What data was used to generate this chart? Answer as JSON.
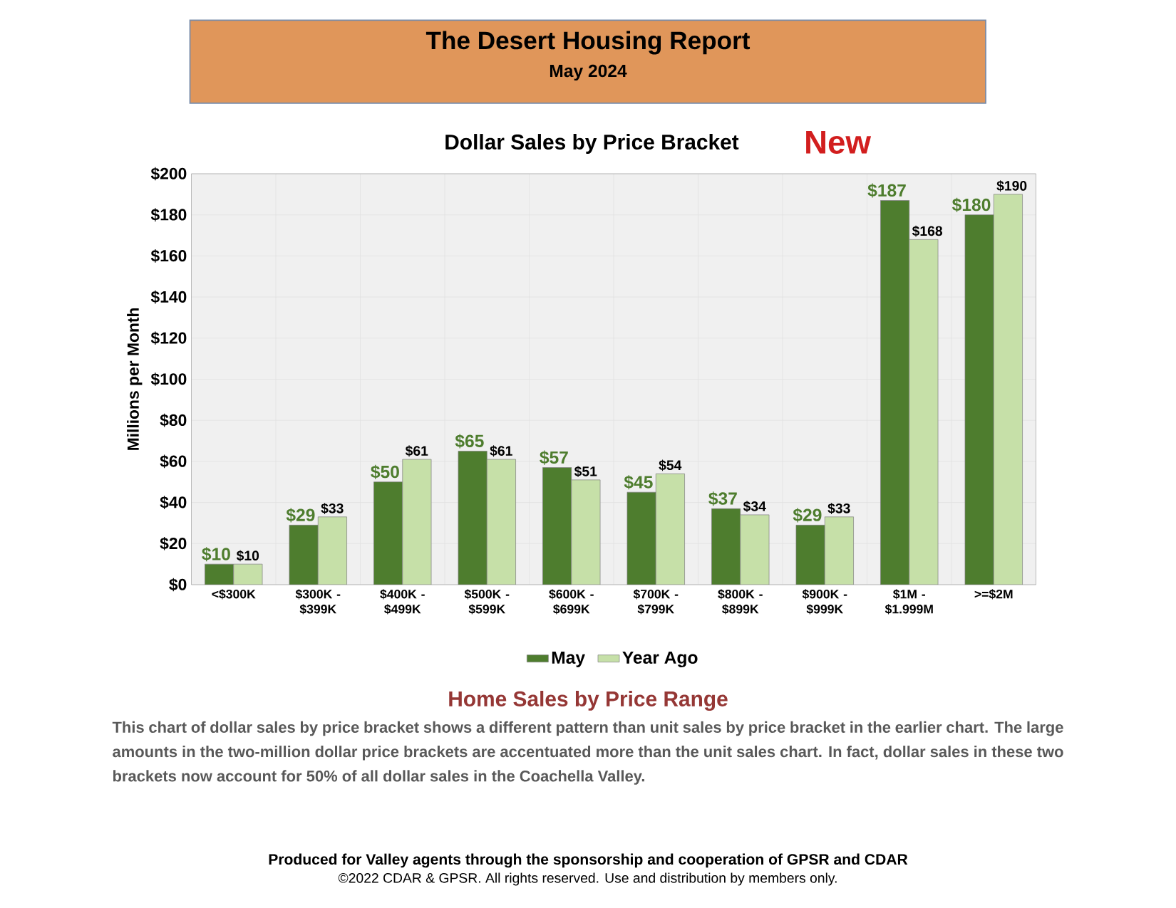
{
  "chart_data": {
    "type": "bar",
    "title": "Dollar Sales by Price Bracket",
    "ylabel": "Millions per Month",
    "categories": [
      "<$300K",
      "$300K - $399K",
      "$400K - $499K",
      "$500K - $599K",
      "$600K - $699K",
      "$700K - $799K",
      "$800K - $899K",
      "$900K - $999K",
      "$1M - $1.999M",
      ">=$2M"
    ],
    "series": [
      {
        "name": "May",
        "color": "#4e7d2e",
        "values": [
          10,
          29,
          50,
          65,
          57,
          45,
          37,
          29,
          187,
          180
        ],
        "value_labels": [
          "$10",
          "$29",
          "$50",
          "$65",
          "$57",
          "$45",
          "$37",
          "$29",
          "$187",
          "$180"
        ]
      },
      {
        "name": "Year Ago",
        "color": "#c6e0a8",
        "values": [
          10,
          33,
          61,
          61,
          51,
          54,
          34,
          33,
          168,
          190
        ],
        "value_labels": [
          "$10",
          "$33",
          "$61",
          "$61",
          "$51",
          "$54",
          "$34",
          "$33",
          "$168",
          "$190"
        ]
      }
    ],
    "ylim": [
      0,
      200
    ],
    "yticks": [
      {
        "value": 0,
        "label": "$0"
      },
      {
        "value": 20,
        "label": "$20"
      },
      {
        "value": 40,
        "label": "$40"
      },
      {
        "value": 60,
        "label": "$60"
      },
      {
        "value": 80,
        "label": "$80"
      },
      {
        "value": 100,
        "label": "$100"
      },
      {
        "value": 120,
        "label": "$120"
      },
      {
        "value": 140,
        "label": "$140"
      },
      {
        "value": 160,
        "label": "$160"
      },
      {
        "value": 180,
        "label": "$180"
      },
      {
        "value": 200,
        "label": "$200"
      }
    ],
    "grid": true,
    "legend": "bottom",
    "annotations": [
      "The Desert Housing Report",
      "May 2024",
      "New",
      "Home Sales by Price Range",
      "This chart of dollar sales by price bracket shows a different pattern than unit sales by price bracket in the earlier chart. The large amounts in the two-million dollar price brackets are accentuated more than the unit sales chart. In fact, dollar sales in these two brackets now account for 50% of all dollar sales in the Coachella Valley.",
      "Produced for Valley agents through the sponsorship and cooperation of GPSR and CDAR",
      "©2022 CDAR & GPSR.  All rights reserved.  Use and distribution by members only."
    ]
  }
}
